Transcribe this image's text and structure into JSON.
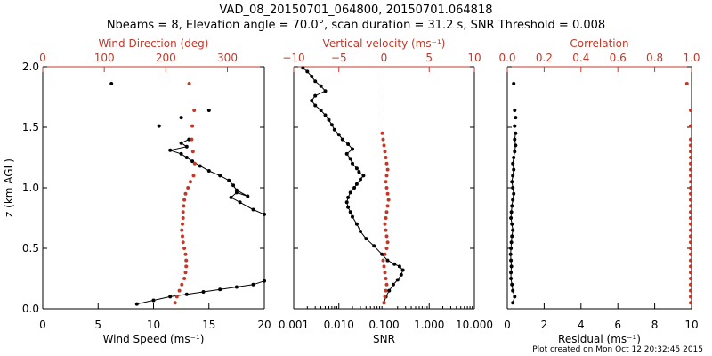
{
  "title_line1": "VAD_08_20150701_064800, 20150701.064818",
  "title_line2": "Nbeams = 8, Elevation angle = 70.0°, scan duration = 31.2 s, SNR Threshold = 0.008",
  "credit": "Plot created on Mon Oct 12 20:32:45 2015",
  "colors": {
    "primary": "#000000",
    "secondary": "#c0392b"
  },
  "chart_data": [
    {
      "type": "scatter",
      "panel": "wind",
      "ylabel": "z (km AGL)",
      "ylim": [
        0,
        2
      ],
      "yticks": [
        0.0,
        0.5,
        1.0,
        1.5,
        2.0
      ],
      "ytick_labels": [
        "0.0",
        "0.5",
        "1.0",
        "1.5",
        "2.0"
      ],
      "bottom_axis": {
        "label": "Wind Speed (ms⁻¹)",
        "range": [
          0,
          20
        ],
        "ticks": [
          0,
          5,
          10,
          15,
          20
        ],
        "tick_labels": [
          "0",
          "5",
          "10",
          "15",
          "20"
        ]
      },
      "top_axis": {
        "label": "Wind Direction (deg)",
        "range": [
          0,
          360
        ],
        "ticks": [
          0,
          100,
          200,
          300
        ],
        "tick_labels": [
          "0",
          "100",
          "200",
          "300"
        ]
      },
      "series": [
        {
          "axis": "bottom",
          "color": "black",
          "lines": true,
          "x": [
            8.5,
            10.0,
            11.5,
            13.0,
            14.5,
            16.0,
            17.5,
            19.0,
            20.0
          ],
          "y": [
            0.04,
            0.07,
            0.1,
            0.12,
            0.14,
            0.16,
            0.18,
            0.2,
            0.23
          ]
        },
        {
          "axis": "bottom",
          "color": "black",
          "lines": true,
          "x": [
            20.0,
            19.0,
            17.8,
            17.0,
            17.5,
            18.5,
            17.5,
            17.2,
            16.8,
            16.0,
            15.0,
            14.2,
            13.5,
            13.0,
            12.5,
            11.5,
            13.0,
            12.5,
            13.2
          ],
          "y": [
            0.78,
            0.82,
            0.88,
            0.92,
            0.96,
            0.93,
            0.98,
            1.02,
            1.06,
            1.1,
            1.14,
            1.18,
            1.22,
            1.25,
            1.28,
            1.31,
            1.34,
            1.37,
            1.4
          ]
        },
        {
          "axis": "bottom",
          "color": "black",
          "lines": false,
          "x": [
            10.5,
            12.5,
            15.0,
            6.2
          ],
          "y": [
            1.51,
            1.58,
            1.64,
            1.86
          ]
        },
        {
          "axis": "top",
          "color": "red",
          "lines": false,
          "x": [
            215,
            218,
            222,
            226,
            230,
            232,
            233,
            233,
            232,
            230,
            228,
            227,
            226,
            227,
            228,
            228,
            229,
            230,
            232,
            236,
            240,
            245,
            247,
            244,
            242
          ],
          "y": [
            0.05,
            0.1,
            0.15,
            0.2,
            0.25,
            0.3,
            0.35,
            0.4,
            0.45,
            0.5,
            0.55,
            0.6,
            0.65,
            0.7,
            0.75,
            0.8,
            0.85,
            0.9,
            0.95,
            1.0,
            1.05,
            1.1,
            1.2,
            1.3,
            1.4
          ]
        },
        {
          "axis": "top",
          "color": "red",
          "lines": false,
          "x": [
            243,
            246,
            238
          ],
          "y": [
            1.51,
            1.64,
            1.86
          ]
        }
      ]
    },
    {
      "type": "scatter",
      "panel": "vertical",
      "ylim": [
        0,
        2
      ],
      "yticks": [
        0.0,
        0.5,
        1.0,
        1.5,
        2.0
      ],
      "bottom_axis": {
        "label": "SNR",
        "scale": "log",
        "range": [
          0.001,
          10
        ],
        "ticks": [
          0.001,
          0.01,
          0.1,
          1,
          10
        ],
        "tick_labels": [
          "0.001",
          "0.010",
          "0.100",
          "1.000",
          "10.000"
        ]
      },
      "top_axis": {
        "label": "Vertical velocity (ms⁻¹)",
        "range": [
          -10,
          10
        ],
        "ticks": [
          -10,
          -5,
          0,
          5,
          10
        ],
        "tick_labels": [
          "−10",
          "−5",
          "0",
          "5",
          "10"
        ],
        "zero_line": true
      },
      "series": [
        {
          "axis": "bottom",
          "color": "black",
          "lines": true,
          "x": [
            0.1,
            0.11,
            0.13,
            0.16,
            0.2,
            0.24,
            0.26,
            0.22,
            0.17,
            0.12,
            0.09,
            0.06,
            0.04,
            0.03,
            0.025,
            0.02,
            0.018,
            0.016,
            0.015,
            0.016,
            0.018,
            0.022,
            0.025,
            0.03,
            0.035,
            0.028,
            0.025,
            0.02,
            0.018,
            0.015,
            0.02,
            0.016,
            0.012,
            0.01,
            0.008,
            0.007,
            0.006,
            0.005,
            0.004,
            0.003,
            0.0025,
            0.003,
            0.005,
            0.004,
            0.003,
            0.0025,
            0.002,
            0.0016
          ],
          "y": [
            0.05,
            0.1,
            0.15,
            0.2,
            0.24,
            0.28,
            0.32,
            0.35,
            0.37,
            0.4,
            0.45,
            0.52,
            0.58,
            0.64,
            0.7,
            0.76,
            0.8,
            0.84,
            0.88,
            0.92,
            0.96,
            1.0,
            1.03,
            1.07,
            1.1,
            1.13,
            1.16,
            1.2,
            1.24,
            1.28,
            1.32,
            1.36,
            1.4,
            1.44,
            1.48,
            1.52,
            1.56,
            1.6,
            1.64,
            1.68,
            1.72,
            1.76,
            1.8,
            1.84,
            1.88,
            1.92,
            1.96,
            1.99
          ]
        },
        {
          "axis": "top",
          "color": "red",
          "lines": false,
          "x": [
            0.0,
            0.1,
            0.2,
            0.3,
            0.2,
            0.1,
            0.0,
            -0.1,
            0.1,
            0.3,
            0.4,
            0.3,
            0.2,
            0.1,
            0.2,
            0.3,
            0.4,
            0.5,
            0.4,
            0.3,
            0.2,
            0.3,
            0.4,
            0.3,
            0.2,
            0.1,
            0.0,
            -0.1,
            -0.2
          ],
          "y": [
            0.05,
            0.1,
            0.15,
            0.2,
            0.25,
            0.3,
            0.35,
            0.4,
            0.45,
            0.5,
            0.55,
            0.6,
            0.65,
            0.7,
            0.75,
            0.8,
            0.85,
            0.9,
            0.95,
            1.0,
            1.05,
            1.1,
            1.15,
            1.2,
            1.25,
            1.3,
            1.35,
            1.4,
            1.45
          ]
        }
      ]
    },
    {
      "type": "scatter",
      "panel": "residual",
      "ylim": [
        0,
        2
      ],
      "yticks": [
        0.0,
        0.5,
        1.0,
        1.5,
        2.0
      ],
      "bottom_axis": {
        "label": "Residual (ms⁻¹)",
        "range": [
          0,
          10
        ],
        "ticks": [
          0,
          2,
          4,
          6,
          8,
          10
        ],
        "tick_labels": [
          "0",
          "2",
          "4",
          "6",
          "8",
          "10"
        ]
      },
      "top_axis": {
        "label": "Correlation",
        "range": [
          0,
          1
        ],
        "ticks": [
          0,
          0.2,
          0.4,
          0.6,
          0.8,
          1.0
        ],
        "tick_labels": [
          "0.0",
          "0.2",
          "0.4",
          "0.6",
          "0.8",
          "1.0"
        ]
      },
      "series": [
        {
          "axis": "bottom",
          "color": "black",
          "lines": true,
          "x": [
            0.3,
            0.4,
            0.3,
            0.25,
            0.2,
            0.2,
            0.22,
            0.2,
            0.18,
            0.2,
            0.22,
            0.25,
            0.3,
            0.25,
            0.2,
            0.22,
            0.25,
            0.3,
            0.35,
            0.3,
            0.25,
            0.3,
            0.35,
            0.3,
            0.35,
            0.4,
            0.45,
            0.4,
            0.45
          ],
          "y": [
            0.05,
            0.1,
            0.15,
            0.2,
            0.25,
            0.3,
            0.35,
            0.4,
            0.45,
            0.5,
            0.55,
            0.6,
            0.65,
            0.7,
            0.75,
            0.8,
            0.85,
            0.9,
            0.95,
            1.0,
            1.05,
            1.1,
            1.15,
            1.2,
            1.25,
            1.3,
            1.35,
            1.4,
            1.45
          ]
        },
        {
          "axis": "bottom",
          "color": "black",
          "lines": false,
          "x": [
            0.4,
            0.45,
            0.4,
            0.35
          ],
          "y": [
            1.51,
            1.58,
            1.64,
            1.86
          ]
        },
        {
          "axis": "top",
          "color": "red",
          "lines": false,
          "x": [
            0.995,
            0.995,
            0.995,
            0.995,
            0.995,
            0.995,
            0.995,
            0.995,
            0.995,
            0.995,
            0.995,
            0.995,
            0.995,
            0.995,
            0.995,
            0.995,
            0.995,
            0.995,
            0.995,
            0.995,
            0.995,
            0.995,
            0.995,
            0.995,
            0.995,
            0.995,
            0.995,
            0.995,
            0.995,
            0.995,
            0.975
          ],
          "y": [
            0.05,
            0.1,
            0.15,
            0.2,
            0.25,
            0.3,
            0.35,
            0.4,
            0.45,
            0.5,
            0.55,
            0.6,
            0.65,
            0.7,
            0.75,
            0.8,
            0.85,
            0.9,
            0.95,
            1.0,
            1.05,
            1.1,
            1.15,
            1.2,
            1.25,
            1.3,
            1.35,
            1.4,
            1.51,
            1.64,
            1.86
          ]
        }
      ]
    }
  ]
}
